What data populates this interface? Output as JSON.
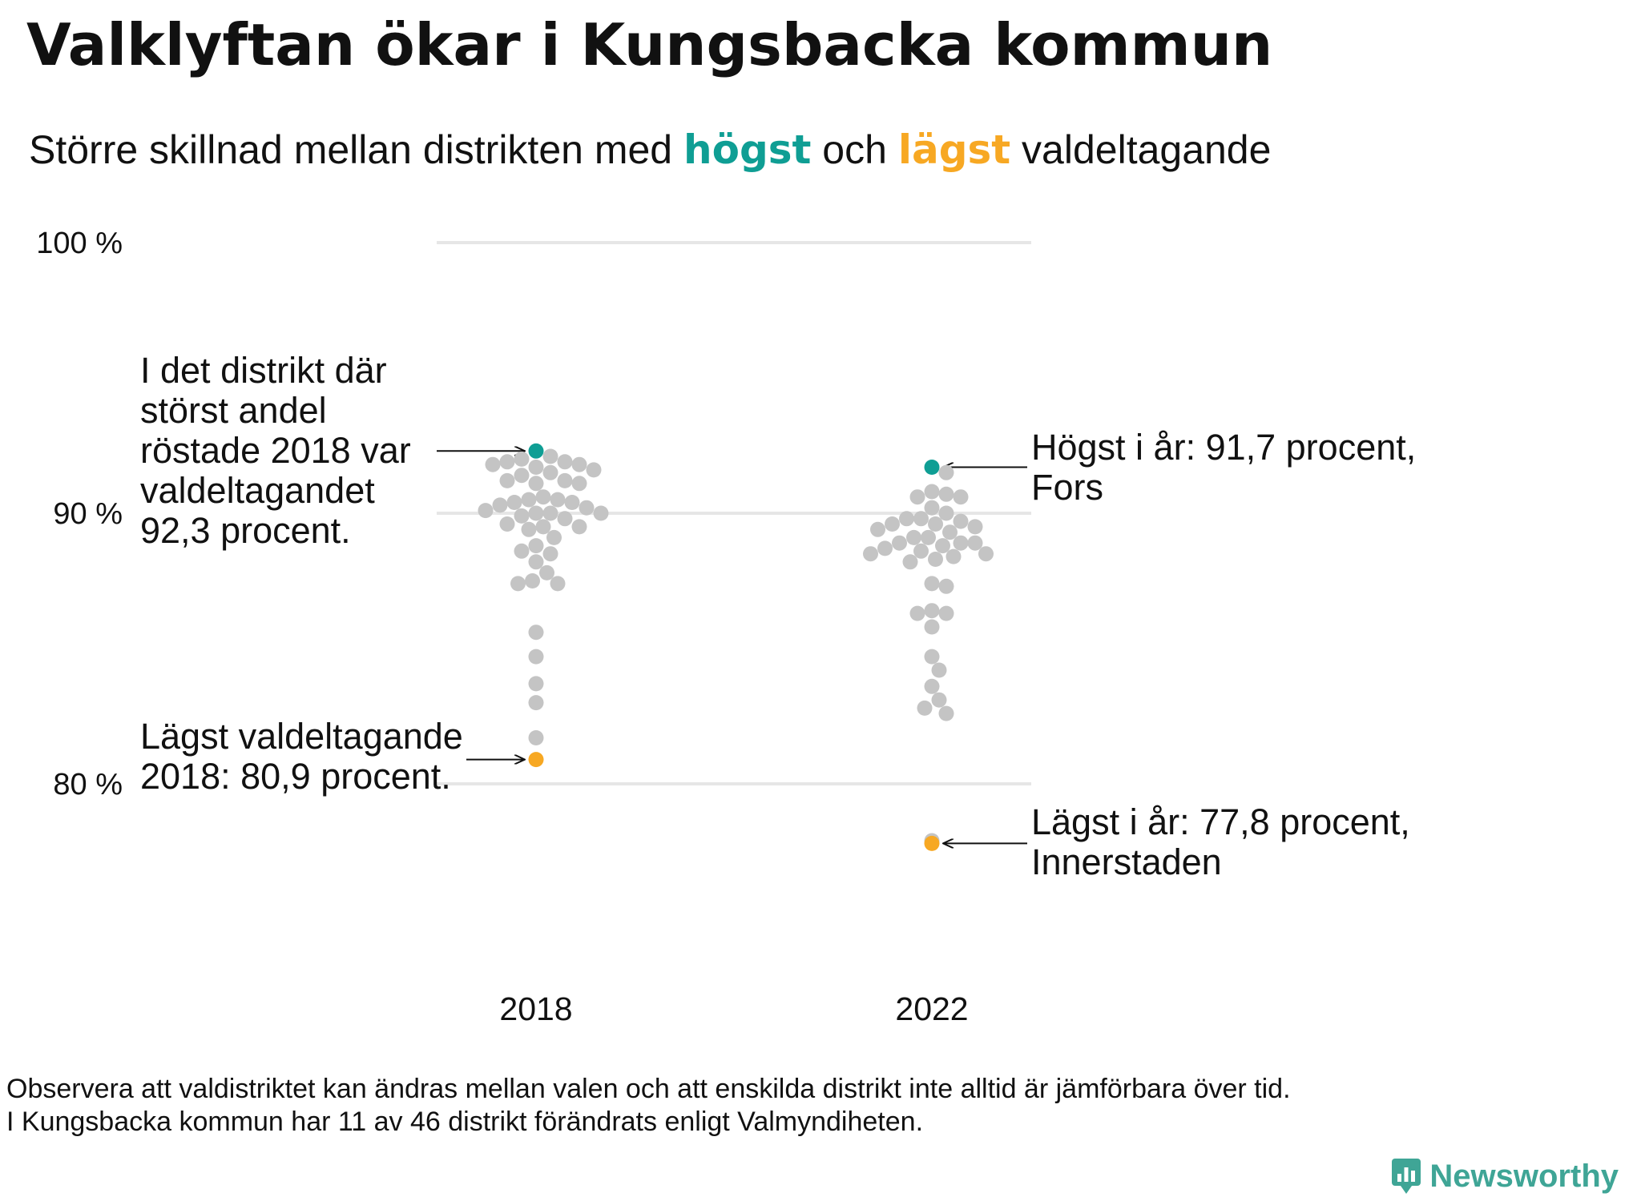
{
  "title": "Valklyftan ökar i Kungsbacka kommun",
  "subtitle": {
    "part1": "Större  skillnad  mellan  distrikten   med ",
    "high_word": "högst",
    "part2": " och ",
    "low_word": "lägst",
    "part3": " valdeltagande"
  },
  "colors": {
    "high": "#0f9e94",
    "low": "#f7a823",
    "dots": "#c4c4c4",
    "grid": "#e6e6e6",
    "brand": "#3fa596"
  },
  "chart_data": {
    "type": "scatter",
    "chart_style": "beeswarm",
    "y_ticks": [
      {
        "value": 100,
        "label": "100 %"
      },
      {
        "value": 90,
        "label": "90 %"
      },
      {
        "value": 80,
        "label": "80 %"
      }
    ],
    "ylim": [
      76,
      100
    ],
    "grid": true,
    "categories": [
      "2018",
      "2022"
    ],
    "series": [
      {
        "category": "2018",
        "highest": 92.3,
        "lowest": 80.9,
        "values": [
          92.3,
          92.1,
          92.0,
          91.9,
          91.9,
          91.8,
          91.8,
          91.7,
          91.6,
          91.5,
          91.4,
          91.2,
          91.2,
          91.1,
          91.1,
          90.6,
          90.5,
          90.5,
          90.4,
          90.4,
          90.3,
          90.2,
          90.1,
          90.0,
          90.0,
          90.0,
          89.9,
          89.8,
          89.6,
          89.5,
          89.5,
          89.4,
          89.1,
          88.8,
          88.6,
          88.5,
          88.2,
          87.8,
          87.5,
          87.4,
          87.4,
          85.6,
          84.7,
          83.7,
          83.0,
          81.7,
          80.9
        ]
      },
      {
        "category": "2022",
        "highest": 91.7,
        "lowest": 77.8,
        "values": [
          91.7,
          91.5,
          90.8,
          90.7,
          90.6,
          90.6,
          90.2,
          90.0,
          89.8,
          89.8,
          89.7,
          89.6,
          89.6,
          89.5,
          89.4,
          89.3,
          89.1,
          89.1,
          88.9,
          88.9,
          88.9,
          88.8,
          88.7,
          88.6,
          88.5,
          88.5,
          88.4,
          88.3,
          88.2,
          87.4,
          87.3,
          86.4,
          86.3,
          86.3,
          85.8,
          84.7,
          84.2,
          83.6,
          83.1,
          82.8,
          82.6,
          77.9,
          77.8
        ]
      }
    ],
    "annotations": [
      {
        "name": "annotation-2018-high",
        "lines": [
          "I det distrikt där",
          "störst andel",
          "röstade 2018 var",
          "valdeltagandet",
          "92,3 procent."
        ]
      },
      {
        "name": "annotation-2018-low",
        "lines": [
          "Lägst valdeltagande",
          "2018: 80,9 procent."
        ]
      },
      {
        "name": "annotation-2022-high",
        "lines": [
          "Högst i år: 91,7 procent,",
          "Fors"
        ]
      },
      {
        "name": "annotation-2022-low",
        "lines": [
          "Lägst i år: 77,8 procent,",
          "Innerstaden"
        ]
      }
    ]
  },
  "footnote": {
    "line1": "Observera att valdistriktet kan ändras mellan valen och att enskilda distrikt inte alltid är jämförbara över tid.",
    "line2": "I Kungsbacka kommun har 11 av 46 distrikt förändrats enligt Valmyndiheten."
  },
  "brand": {
    "name": "Newsworthy",
    "icon": "newsworthy-logo-icon"
  }
}
